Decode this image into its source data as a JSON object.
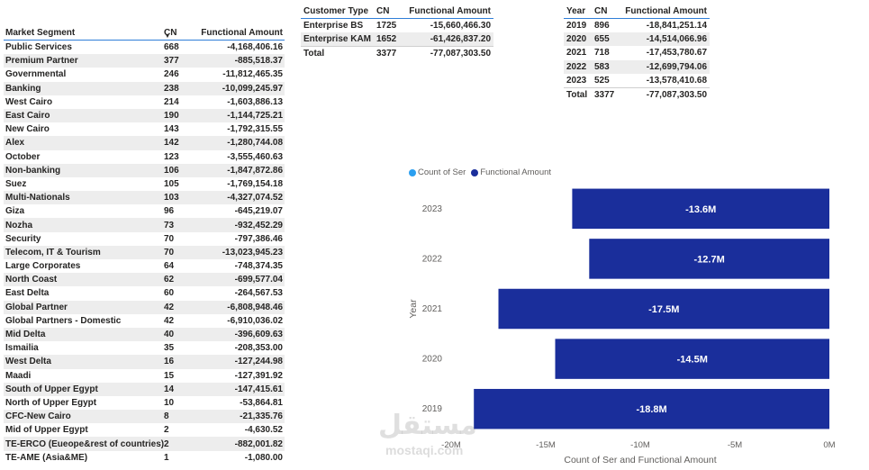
{
  "segment_table": {
    "headers": [
      "Market Segment",
      "CN",
      "Functional Amount"
    ],
    "rows": [
      [
        "Public Services",
        "668",
        "-4,168,406.16"
      ],
      [
        "Premium Partner",
        "377",
        "-885,518.37"
      ],
      [
        "Governmental",
        "246",
        "-11,812,465.35"
      ],
      [
        "Banking",
        "238",
        "-10,099,245.97"
      ],
      [
        "West Cairo",
        "214",
        "-1,603,886.13"
      ],
      [
        "East Cairo",
        "190",
        "-1,144,725.21"
      ],
      [
        "New Cairo",
        "143",
        "-1,792,315.55"
      ],
      [
        "Alex",
        "142",
        "-1,280,744.08"
      ],
      [
        "October",
        "123",
        "-3,555,460.63"
      ],
      [
        "Non-banking",
        "106",
        "-1,847,872.86"
      ],
      [
        "Suez",
        "105",
        "-1,769,154.18"
      ],
      [
        "Multi-Nationals",
        "103",
        "-4,327,074.52"
      ],
      [
        "Giza",
        "96",
        "-645,219.07"
      ],
      [
        "Nozha",
        "73",
        "-932,452.29"
      ],
      [
        "Security",
        "70",
        "-797,386.46"
      ],
      [
        "Telecom, IT & Tourism",
        "70",
        "-13,023,945.23"
      ],
      [
        "Large Corporates",
        "64",
        "-748,374.35"
      ],
      [
        "North Coast",
        "62",
        "-699,577.04"
      ],
      [
        "East Delta",
        "60",
        "-264,567.53"
      ],
      [
        "Global Partner",
        "42",
        "-6,808,948.46"
      ],
      [
        "Global Partners - Domestic",
        "42",
        "-6,910,036.02"
      ],
      [
        "Mid Delta",
        "40",
        "-396,609.63"
      ],
      [
        "Ismailia",
        "35",
        "-208,353.00"
      ],
      [
        "West Delta",
        "16",
        "-127,244.98"
      ],
      [
        "Maadi",
        "15",
        "-127,391.92"
      ],
      [
        "South of Upper Egypt",
        "14",
        "-147,415.61"
      ],
      [
        "North of Upper Egypt",
        "10",
        "-53,864.81"
      ],
      [
        "CFC-New Cairo",
        "8",
        "-21,335.76"
      ],
      [
        "Mid of Upper Egypt",
        "2",
        "-4,630.52"
      ],
      [
        "TE-ERCO (Eueope&rest of countries)",
        "2",
        "-882,001.82"
      ],
      [
        "TE-AME (Asia&ME)",
        "1",
        "-1,080.00"
      ]
    ]
  },
  "customer_table": {
    "headers": [
      "Customer Type",
      "CN",
      "Functional Amount"
    ],
    "rows": [
      [
        "Enterprise BS",
        "1725",
        "-15,660,466.30"
      ],
      [
        "Enterprise KAM",
        "1652",
        "-61,426,837.20"
      ]
    ],
    "total": [
      "Total",
      "3377",
      "-77,087,303.50"
    ]
  },
  "year_table": {
    "headers": [
      "Year",
      "CN",
      "Functional Amount"
    ],
    "rows": [
      [
        "2019",
        "896",
        "-18,841,251.14"
      ],
      [
        "2020",
        "655",
        "-14,514,066.96"
      ],
      [
        "2021",
        "718",
        "-17,453,780.67"
      ],
      [
        "2022",
        "583",
        "-12,699,794.06"
      ],
      [
        "2023",
        "525",
        "-13,578,410.68"
      ]
    ],
    "total": [
      "Total",
      "3377",
      "-77,087,303.50"
    ]
  },
  "colors": {
    "bar": "#1a2e9b",
    "legend_count": "#2b9ff0",
    "legend_amount": "#1a2e9b",
    "header_rule": "#2f7ed8",
    "alt_row": "#ededed"
  },
  "watermark": {
    "arabic": "مستقل",
    "latin": "mostaqi.com"
  },
  "chart_data": {
    "type": "bar",
    "orientation": "horizontal",
    "categories": [
      "2023",
      "2022",
      "2021",
      "2020",
      "2019"
    ],
    "series": [
      {
        "name": "Count of Ser",
        "values": [
          525,
          583,
          718,
          655,
          896
        ]
      },
      {
        "name": "Functional Amount",
        "values": [
          -13.6,
          -12.7,
          -17.5,
          -14.5,
          -18.8
        ]
      }
    ],
    "data_labels": [
      "-13.6M",
      "-12.7M",
      "-17.5M",
      "-14.5M",
      "-18.8M"
    ],
    "legend": [
      "Count of Ser",
      "Functional Amount"
    ],
    "legend_position": "top-left",
    "xlabel": "Count of Ser and Functional Amount",
    "ylabel": "Year",
    "xlim": [
      -20,
      0
    ],
    "x_ticks": [
      "-20M",
      "-15M",
      "-10M",
      "-5M",
      "0M"
    ],
    "x_tick_values": [
      -20,
      -15,
      -10,
      -5,
      0
    ],
    "grid": false
  }
}
